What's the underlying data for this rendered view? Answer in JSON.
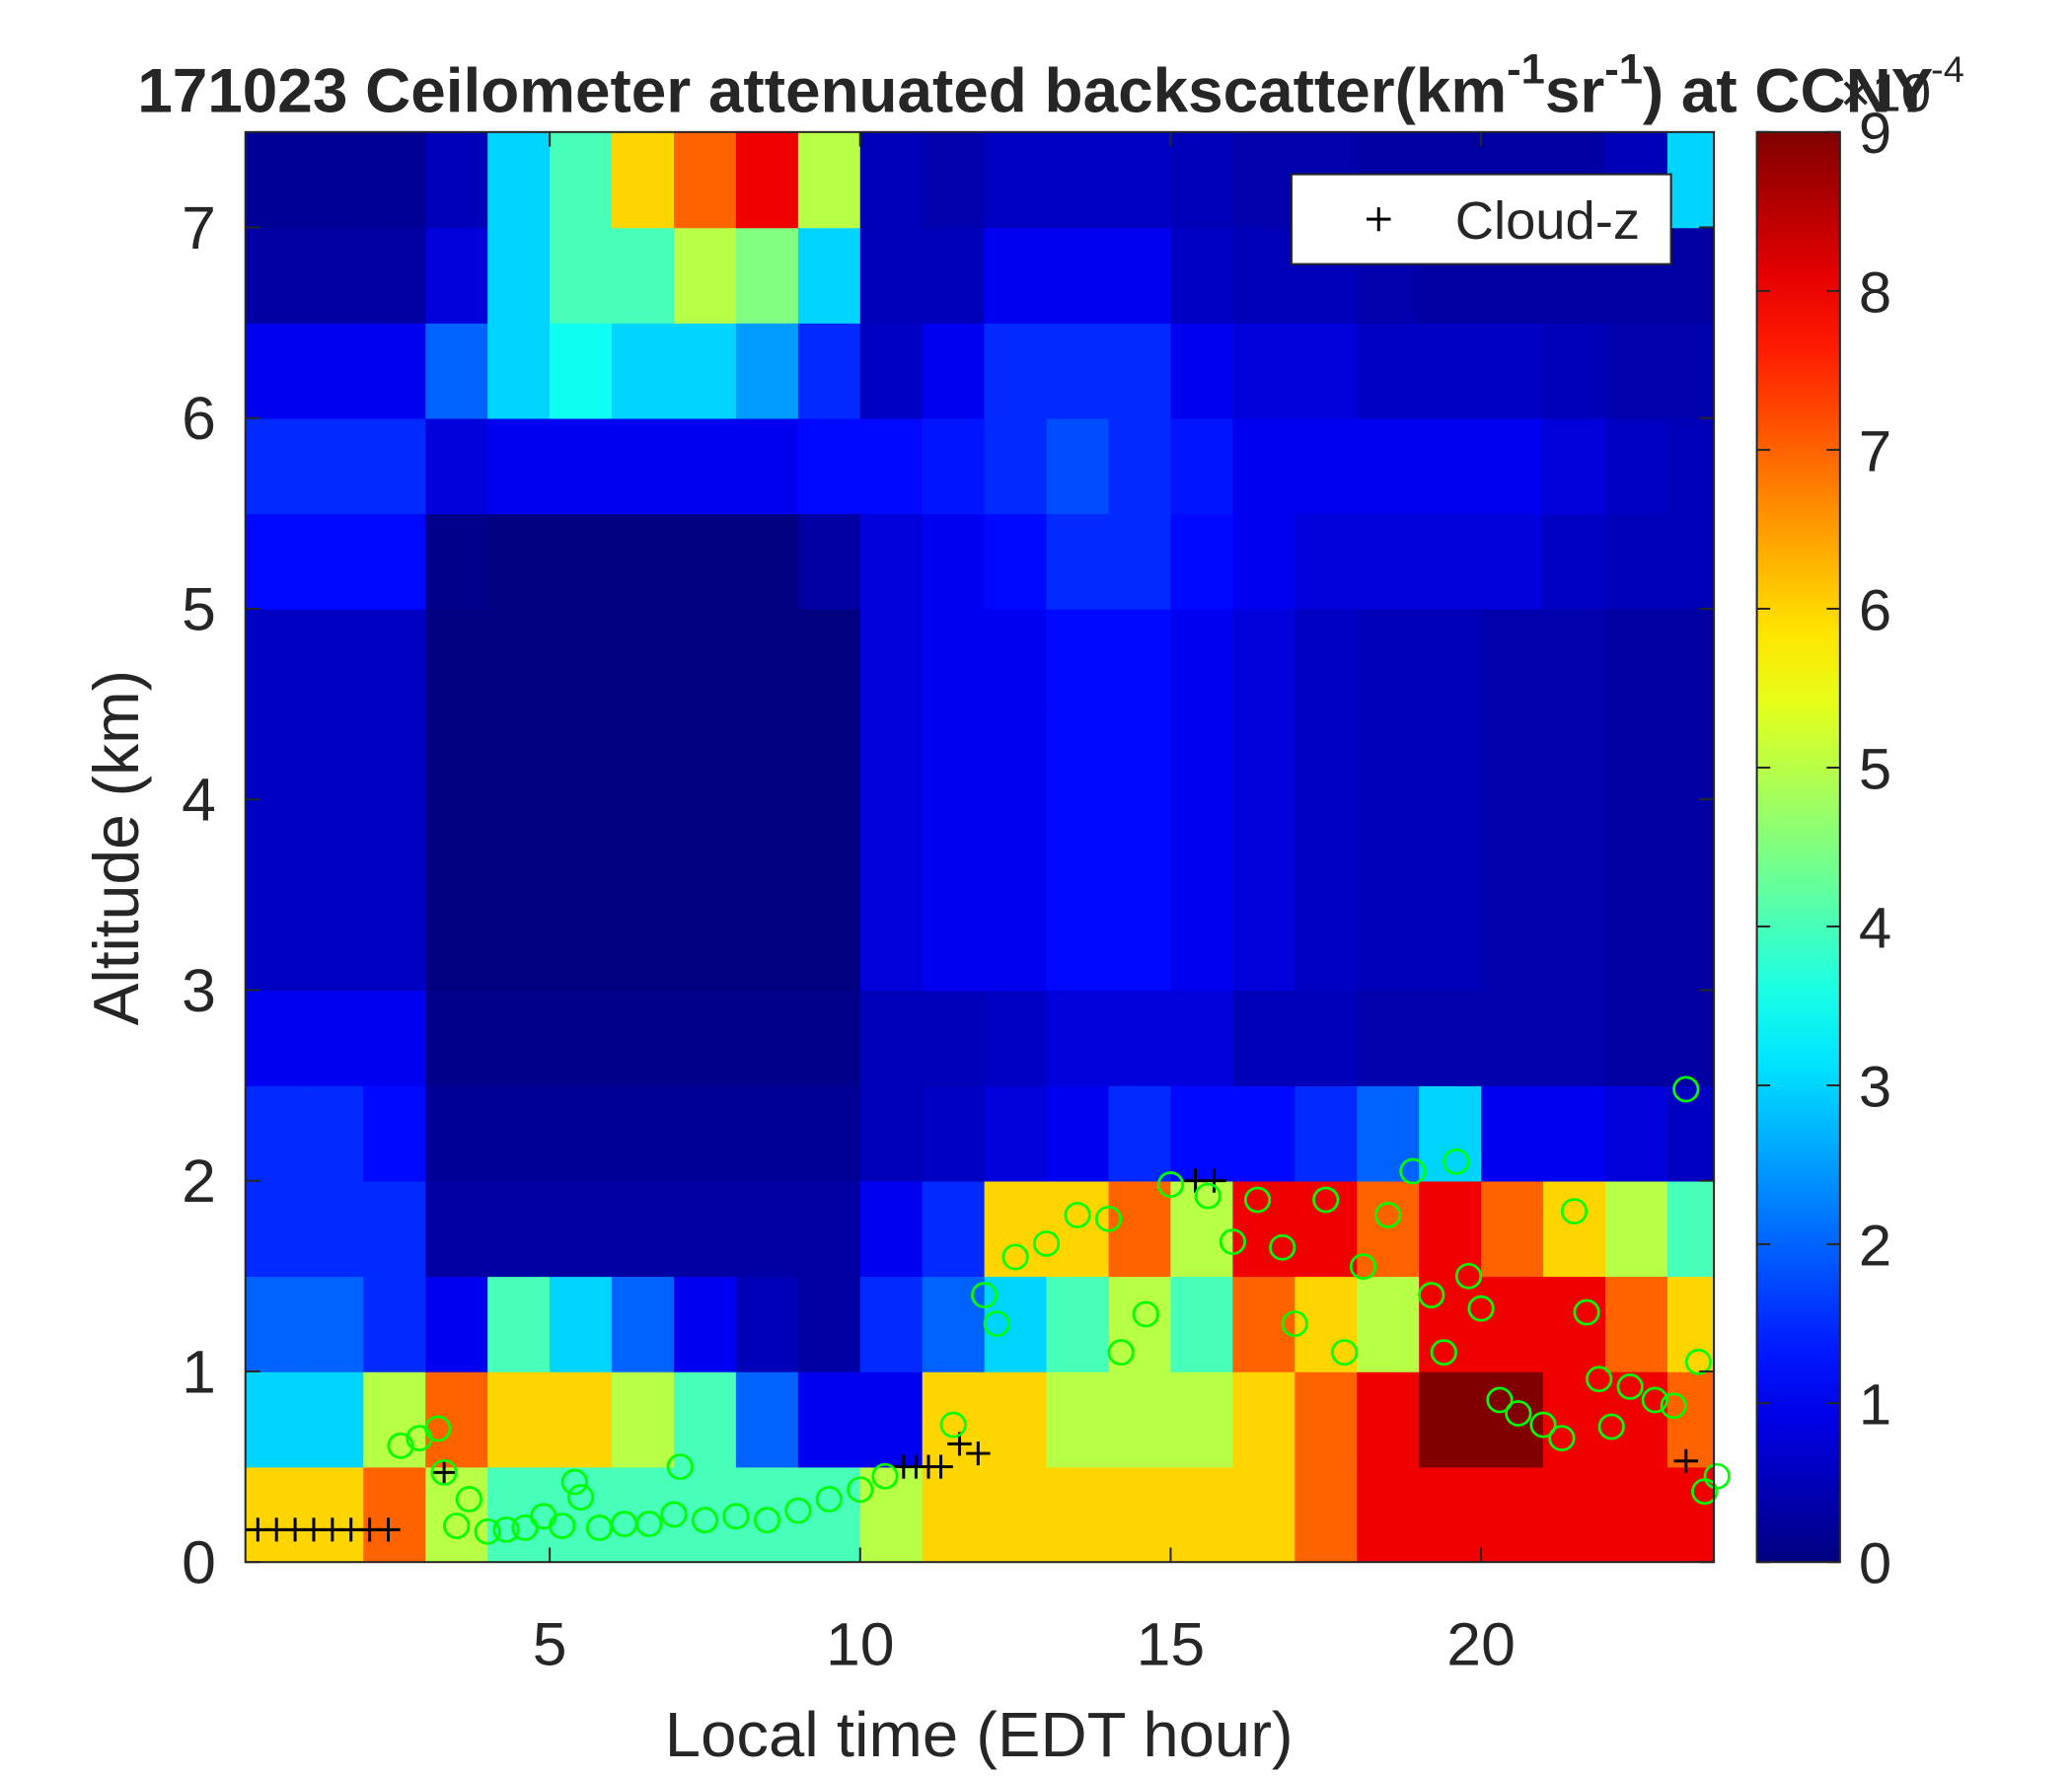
{
  "chart_data": {
    "type": "heatmap",
    "title_parts": [
      "171023 Ceilometer attenuated backscatter(km",
      "-1",
      "sr",
      "-1",
      ") at CCNY"
    ],
    "x_label": "Local time (EDT hour)",
    "y_label": "Altitude (km)",
    "colormap": "jet",
    "x": [
      0.5,
      1.5,
      2.5,
      3.5,
      4.5,
      5.5,
      6.5,
      7.5,
      8.5,
      9.5,
      10.5,
      11.5,
      12.5,
      13.5,
      14.5,
      15.5,
      16.5,
      17.5,
      18.5,
      19.5,
      20.5,
      21.5,
      22.5,
      23.5
    ],
    "y": [
      0.25,
      0.75,
      1.25,
      1.75,
      2.25,
      2.75,
      3.25,
      3.75,
      4.25,
      4.75,
      5.25,
      5.75,
      6.25,
      6.75,
      7.25
    ],
    "z": [
      [
        6,
        6,
        7,
        5,
        4,
        4,
        4,
        4,
        4,
        4,
        5,
        6,
        6,
        6,
        6,
        6,
        6,
        7,
        8,
        8,
        8,
        8,
        8,
        8
      ],
      [
        3,
        3,
        5,
        7,
        6,
        6,
        5,
        4,
        2,
        1,
        1,
        6,
        6,
        5,
        5,
        5,
        6,
        7,
        8,
        9,
        9,
        8,
        8,
        7
      ],
      [
        2,
        2,
        1.5,
        1,
        4,
        3,
        2,
        1,
        0.5,
        0.3,
        1.5,
        2,
        3,
        4,
        5,
        4,
        7,
        6,
        5,
        8,
        8,
        8,
        7,
        6
      ],
      [
        1.5,
        1.5,
        1.5,
        0.3,
        0.3,
        0.3,
        0.3,
        0.3,
        0.3,
        0.3,
        1,
        1.5,
        6,
        6,
        7,
        5,
        8,
        8,
        7,
        8,
        7,
        6,
        5,
        4
      ],
      [
        1.5,
        1.5,
        1.2,
        0.2,
        0.2,
        0.2,
        0.2,
        0.2,
        0.2,
        0.2,
        0.5,
        0.6,
        0.8,
        1,
        1.5,
        1.2,
        1.2,
        1.5,
        2,
        3,
        1,
        1,
        0.8,
        0.6
      ],
      [
        1,
        1,
        1,
        0.1,
        0.1,
        0.1,
        0.1,
        0.1,
        0.1,
        0.1,
        0.5,
        0.5,
        0.6,
        0.8,
        0.8,
        0.8,
        0.5,
        0.5,
        0.4,
        0.4,
        0.4,
        0.4,
        0.3,
        0.3
      ],
      [
        0.6,
        0.6,
        0.6,
        0,
        0,
        0,
        0,
        0,
        0,
        0,
        0.8,
        1,
        1,
        1.2,
        1.2,
        1,
        0.8,
        0.6,
        0.5,
        0.5,
        0.4,
        0.4,
        0.3,
        0.3
      ],
      [
        0.6,
        0.6,
        0.6,
        0,
        0,
        0,
        0,
        0,
        0,
        0,
        0.8,
        1,
        1,
        1.2,
        1.2,
        1,
        0.8,
        0.6,
        0.5,
        0.5,
        0.4,
        0.4,
        0.3,
        0.3
      ],
      [
        0.6,
        0.6,
        0.6,
        0,
        0,
        0,
        0,
        0,
        0,
        0,
        0.8,
        1,
        1,
        1.2,
        1.2,
        1,
        0.8,
        0.6,
        0.5,
        0.5,
        0.4,
        0.4,
        0.3,
        0.3
      ],
      [
        0.6,
        0.6,
        0.6,
        0,
        0,
        0,
        0,
        0,
        0,
        0,
        0.8,
        1,
        1,
        1.2,
        1.2,
        1,
        0.8,
        0.6,
        0.5,
        0.5,
        0.4,
        0.4,
        0.3,
        0.3
      ],
      [
        1.2,
        1.2,
        1.2,
        0.1,
        0,
        0,
        0,
        0,
        0,
        0.3,
        0.8,
        1,
        1.2,
        1.5,
        1.5,
        1.2,
        1,
        0.8,
        0.8,
        0.8,
        0.8,
        0.6,
        0.5,
        0.5
      ],
      [
        1.5,
        1.5,
        1.5,
        0.8,
        1,
        1,
        1,
        1,
        1,
        1.2,
        1.2,
        1.3,
        1.5,
        1.8,
        1.5,
        1.3,
        1,
        1,
        1,
        1,
        1,
        0.8,
        0.6,
        0.5
      ],
      [
        1,
        1,
        1,
        2,
        3,
        3.5,
        3,
        3,
        2.5,
        1.5,
        0.6,
        1,
        1.5,
        1.5,
        1.5,
        1,
        0.8,
        0.8,
        0.6,
        0.6,
        0.6,
        0.5,
        0.4,
        0.4
      ],
      [
        0.3,
        0.3,
        0.3,
        0.8,
        3,
        4,
        4,
        5,
        4.5,
        3,
        0.5,
        0.5,
        1,
        1,
        1,
        0.6,
        0.5,
        0.5,
        0.4,
        0.3,
        0.3,
        0.3,
        0.3,
        0.3
      ],
      [
        0.2,
        0.2,
        0.2,
        0.5,
        3,
        4,
        6,
        7,
        8,
        5,
        0.5,
        0.4,
        0.6,
        0.6,
        0.6,
        0.5,
        0.4,
        0.4,
        0.3,
        0.3,
        0.3,
        0.3,
        0.5,
        3
      ]
    ],
    "xlim": [
      0.1,
      23.75
    ],
    "ylim": [
      0,
      7.5
    ],
    "xticks": [
      5,
      10,
      15,
      20
    ],
    "yticks": [
      0,
      1,
      2,
      3,
      4,
      5,
      6,
      7
    ],
    "clim": [
      0,
      9
    ],
    "cticks": [
      0,
      1,
      2,
      3,
      4,
      5,
      6,
      7,
      8,
      9
    ],
    "colorbar_multiplier": [
      "×10",
      "-4"
    ],
    "legend_position": "northeast",
    "overlays": [
      {
        "name": "Cloud-z",
        "marker": "plus",
        "color": "#000000",
        "x": [
          0.3,
          0.6,
          0.9,
          1.2,
          1.5,
          1.8,
          2.1,
          2.4,
          3.3,
          10.7,
          10.9,
          11.1,
          11.3,
          11.6,
          11.9,
          15.4,
          15.7,
          23.3
        ],
        "y": [
          0.17,
          0.17,
          0.17,
          0.17,
          0.17,
          0.17,
          0.17,
          0.17,
          0.47,
          0.5,
          0.5,
          0.5,
          0.5,
          0.62,
          0.57,
          2.0,
          2.0,
          0.53
        ]
      },
      {
        "marker": "circle",
        "color": "#00ff00",
        "x": [
          2.6,
          2.9,
          3.2,
          3.3,
          3.5,
          3.7,
          4.0,
          4.3,
          4.6,
          4.9,
          5.2,
          5.4,
          5.5,
          5.8,
          6.2,
          6.6,
          7.0,
          7.1,
          7.5,
          8.0,
          8.5,
          9.0,
          9.5,
          10.0,
          10.4,
          11.5,
          12.0,
          12.2,
          12.5,
          13.0,
          13.5,
          14.0,
          14.2,
          14.6,
          15.0,
          15.6,
          16.0,
          16.4,
          16.8,
          17.0,
          17.5,
          17.8,
          18.1,
          18.5,
          18.9,
          19.2,
          19.4,
          19.6,
          19.8,
          20.0,
          20.3,
          20.6,
          21.0,
          21.3,
          21.5,
          21.7,
          21.9,
          22.1,
          22.4,
          22.8,
          23.1,
          23.3,
          23.5,
          23.6,
          23.8
        ],
        "y": [
          0.61,
          0.65,
          0.7,
          0.47,
          0.19,
          0.33,
          0.16,
          0.17,
          0.18,
          0.24,
          0.19,
          0.42,
          0.34,
          0.18,
          0.2,
          0.2,
          0.25,
          0.5,
          0.22,
          0.24,
          0.22,
          0.27,
          0.33,
          0.38,
          0.45,
          0.72,
          1.4,
          1.25,
          1.6,
          1.67,
          1.82,
          1.8,
          1.1,
          1.3,
          1.98,
          1.92,
          1.68,
          1.9,
          1.65,
          1.25,
          1.9,
          1.1,
          1.55,
          1.82,
          2.05,
          1.4,
          1.1,
          2.1,
          1.5,
          1.33,
          0.85,
          0.78,
          0.72,
          0.65,
          1.84,
          1.31,
          0.96,
          0.71,
          0.92,
          0.85,
          0.82,
          2.48,
          1.05,
          0.37,
          0.45
        ]
      }
    ]
  }
}
